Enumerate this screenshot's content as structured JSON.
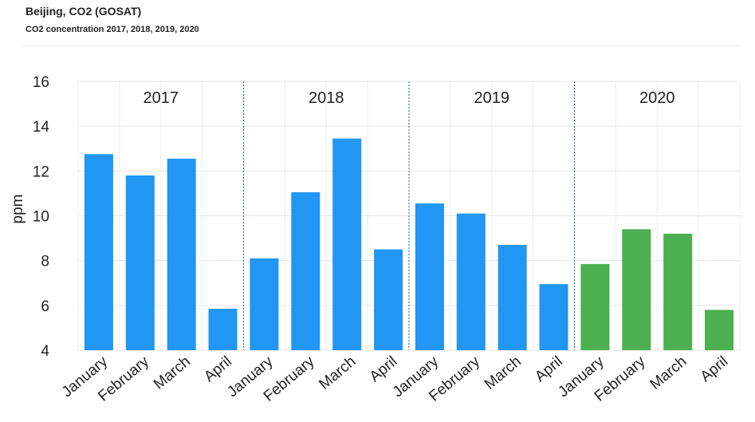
{
  "header": {
    "title": "Beijing, CO2 (GOSAT)",
    "subtitle": "CO2 concentration 2017, 2018, 2019, 2020"
  },
  "chart_data": {
    "type": "bar",
    "title": "Beijing, CO2 (GOSAT)",
    "subtitle": "CO2 concentration 2017, 2018, 2019, 2020",
    "xlabel": "",
    "ylabel": "ppm",
    "ylim": [
      4,
      16
    ],
    "yticks": [
      4,
      6,
      8,
      10,
      12,
      14,
      16
    ],
    "grid": true,
    "legend": "none",
    "categories": [
      "January",
      "February",
      "March",
      "April",
      "January",
      "February",
      "March",
      "April",
      "January",
      "February",
      "March",
      "April",
      "January",
      "February",
      "March",
      "April"
    ],
    "groups": [
      {
        "label": "2017",
        "start": 0,
        "end": 3
      },
      {
        "label": "2018",
        "start": 4,
        "end": 7
      },
      {
        "label": "2019",
        "start": 8,
        "end": 11
      },
      {
        "label": "2020",
        "start": 12,
        "end": 15
      }
    ],
    "series": [
      {
        "values": [
          12.75,
          11.8,
          12.55,
          5.85,
          8.1,
          11.05,
          13.45,
          8.5,
          10.55,
          10.1,
          8.7,
          6.95,
          7.85,
          9.4,
          9.2,
          5.8
        ]
      }
    ],
    "bar_colors": [
      "#2196f3",
      "#2196f3",
      "#2196f3",
      "#2196f3",
      "#2196f3",
      "#2196f3",
      "#2196f3",
      "#2196f3",
      "#2196f3",
      "#2196f3",
      "#2196f3",
      "#2196f3",
      "#4caf50",
      "#4caf50",
      "#4caf50",
      "#4caf50"
    ],
    "colors": {
      "bar_main": "#2196f3",
      "bar_highlight": "#4caf50",
      "separator": "#1565c0",
      "grid": "#e6e6e6"
    }
  }
}
